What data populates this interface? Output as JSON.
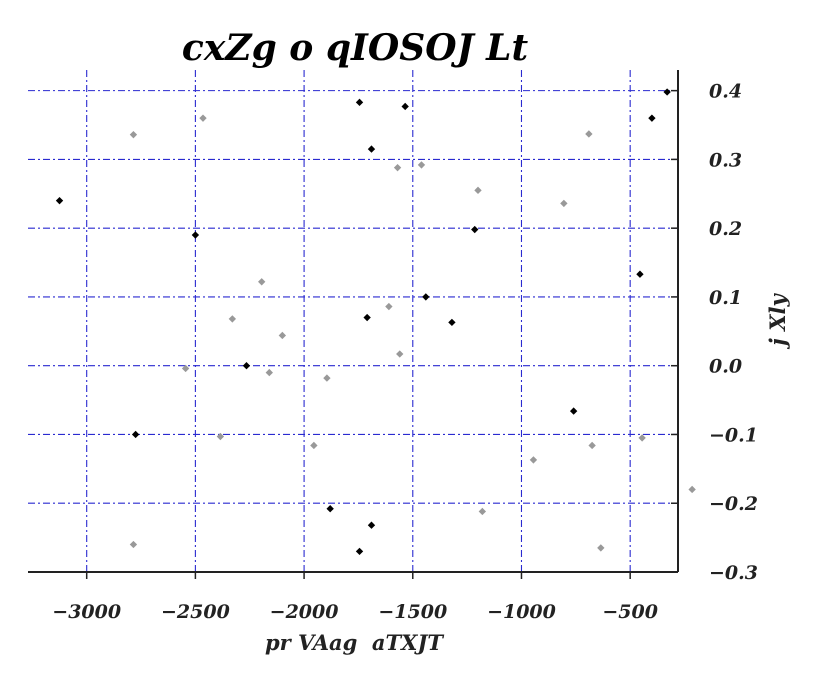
{
  "chart_data": {
    "type": "scatter",
    "title": "cxZg o qIOSOJ Lt",
    "xlabel": "pr VAag  aTXJT",
    "ylabel": "j Xly",
    "xlim": [
      -3270,
      -280
    ],
    "ylim": [
      -0.3,
      0.43
    ],
    "xticks": [
      -3000,
      -2500,
      -2000,
      -1500,
      -1000,
      -500
    ],
    "yticks": [
      -0.3,
      -0.2,
      -0.1,
      0.0,
      0.1,
      0.2,
      0.3,
      0.4
    ],
    "xtick_labels": [
      "−3000",
      "−2500",
      "−2000",
      "−1500",
      "−1000",
      "−500"
    ],
    "ytick_labels": [
      "−0.3",
      "−0.2",
      "−0.1",
      "0.0",
      "0.1",
      "0.2",
      "0.3",
      "0.4"
    ],
    "grid": true,
    "y_axis_position": "right",
    "series": [
      {
        "color": "#000000",
        "points": [
          [
            -3125,
            0.24
          ],
          [
            -2775,
            -0.1
          ],
          [
            -2500,
            0.19
          ],
          [
            -2265,
            0.0
          ],
          [
            -1880,
            -0.208
          ],
          [
            -1745,
            0.383
          ],
          [
            -1745,
            -0.27
          ],
          [
            -1710,
            0.07
          ],
          [
            -1690,
            0.315
          ],
          [
            -1690,
            -0.232
          ],
          [
            -1535,
            0.377
          ],
          [
            -1440,
            0.1
          ],
          [
            -1320,
            0.063
          ],
          [
            -1215,
            0.198
          ],
          [
            -760,
            -0.066
          ],
          [
            -455,
            0.133
          ],
          [
            -400,
            0.36
          ],
          [
            -330,
            0.398
          ]
        ]
      },
      {
        "color": "#999999",
        "points": [
          [
            -2785,
            0.336
          ],
          [
            -2785,
            -0.26
          ],
          [
            -2545,
            -0.004
          ],
          [
            -2465,
            0.36
          ],
          [
            -2385,
            -0.103
          ],
          [
            -2330,
            0.068
          ],
          [
            -2195,
            0.122
          ],
          [
            -2160,
            -0.01
          ],
          [
            -2100,
            0.044
          ],
          [
            -1955,
            -0.116
          ],
          [
            -1895,
            -0.018
          ],
          [
            -1610,
            0.086
          ],
          [
            -1570,
            0.288
          ],
          [
            -1560,
            0.017
          ],
          [
            -1460,
            0.292
          ],
          [
            -1200,
            0.255
          ],
          [
            -1180,
            -0.212
          ],
          [
            -945,
            -0.137
          ],
          [
            -805,
            0.236
          ],
          [
            -690,
            0.337
          ],
          [
            -675,
            -0.116
          ],
          [
            -635,
            -0.265
          ],
          [
            -445,
            -0.105
          ],
          [
            -215,
            -0.18
          ]
        ]
      }
    ]
  }
}
